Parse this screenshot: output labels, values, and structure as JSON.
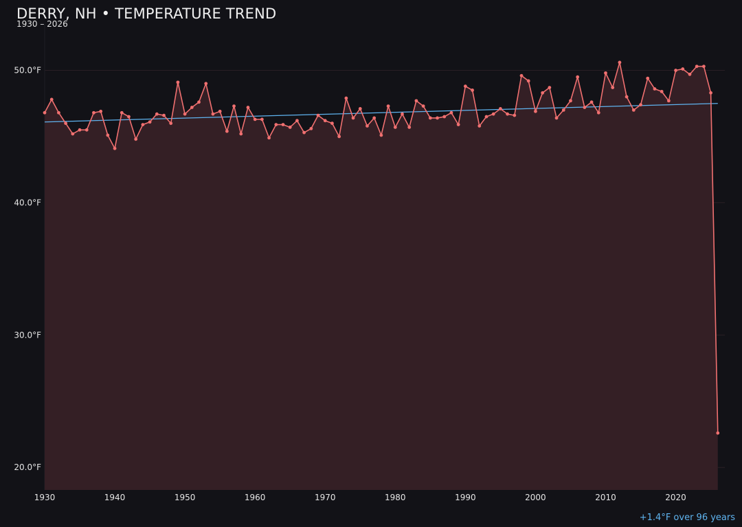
{
  "header": {
    "title": "DERRY, NH • TEMPERATURE TREND",
    "subtitle": "1930 – 2026"
  },
  "footer": {
    "trend_note": "+1.4°F over 96 years"
  },
  "colors": {
    "background": "#121217",
    "series": "#f07070",
    "area_fill": "#341f25",
    "trend": "#5fb4f0",
    "grid": "#2a1f25"
  },
  "chart_data": {
    "type": "area",
    "title": "DERRY, NH • TEMPERATURE TREND",
    "subtitle": "1930 – 2026",
    "xlabel": "",
    "ylabel": "",
    "xlim": [
      1930,
      2027
    ],
    "ylim": [
      18.3,
      53.5
    ],
    "x_ticks": [
      1930,
      1940,
      1950,
      1960,
      1970,
      1980,
      1990,
      2000,
      2010,
      2020
    ],
    "y_ticks": [
      20,
      30,
      40,
      50
    ],
    "y_tick_labels": [
      "20.0°F",
      "30.0°F",
      "40.0°F",
      "50.0°F"
    ],
    "grid": true,
    "series": [
      {
        "x": [
          1930,
          1931,
          1932,
          1933,
          1934,
          1935,
          1936,
          1937,
          1938,
          1939,
          1940,
          1941,
          1942,
          1943,
          1944,
          1945,
          1946,
          1947,
          1948,
          1949,
          1950,
          1951,
          1952,
          1953,
          1954,
          1955,
          1956,
          1957,
          1958,
          1959,
          1960,
          1961,
          1962,
          1963,
          1964,
          1965,
          1966,
          1967,
          1968,
          1969,
          1970,
          1971,
          1972,
          1973,
          1974,
          1975,
          1976,
          1977,
          1978,
          1979,
          1980,
          1981,
          1982,
          1983,
          1984,
          1985,
          1986,
          1987,
          1988,
          1989,
          1990,
          1991,
          1992,
          1993,
          1994,
          1995,
          1996,
          1997,
          1998,
          1999,
          2000,
          2001,
          2002,
          2003,
          2004,
          2005,
          2006,
          2007,
          2008,
          2009,
          2010,
          2011,
          2012,
          2013,
          2014,
          2015,
          2016,
          2017,
          2018,
          2019,
          2020,
          2021,
          2022,
          2023,
          2024,
          2025,
          2026
        ],
        "values": [
          46.8,
          47.8,
          46.8,
          46.0,
          45.2,
          45.5,
          45.5,
          46.8,
          46.9,
          45.1,
          44.1,
          46.8,
          46.5,
          44.8,
          45.9,
          46.1,
          46.7,
          46.6,
          46.0,
          49.1,
          46.7,
          47.2,
          47.6,
          49.0,
          46.7,
          46.9,
          45.4,
          47.3,
          45.2,
          47.2,
          46.3,
          46.3,
          44.9,
          45.9,
          45.9,
          45.7,
          46.2,
          45.3,
          45.6,
          46.6,
          46.2,
          46.0,
          45.0,
          47.9,
          46.4,
          47.1,
          45.8,
          46.4,
          45.1,
          47.3,
          45.7,
          46.7,
          45.7,
          47.7,
          47.3,
          46.4,
          46.4,
          46.5,
          46.8,
          45.9,
          48.8,
          48.5,
          45.8,
          46.5,
          46.7,
          47.1,
          46.7,
          46.6,
          49.6,
          49.2,
          46.9,
          48.3,
          48.7,
          46.4,
          47.0,
          47.7,
          49.5,
          47.2,
          47.6,
          46.8,
          49.8,
          48.7,
          50.6,
          48.0,
          47.0,
          47.4,
          49.4,
          48.6,
          48.4,
          47.7,
          50.0,
          50.1,
          49.7,
          50.3,
          50.3,
          48.3,
          22.6
        ]
      }
    ],
    "trend_line": {
      "x": [
        1930,
        2026
      ],
      "y": [
        46.1,
        47.5
      ]
    },
    "annotation": "+1.4°F over 96 years"
  }
}
